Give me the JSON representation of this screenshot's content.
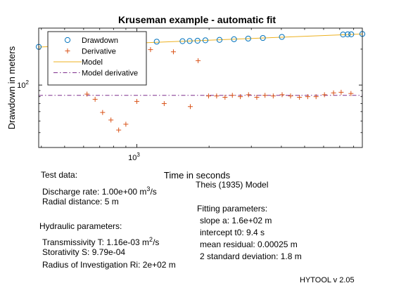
{
  "chart_data": {
    "type": "scatter",
    "title": "Kruseman example - automatic fit",
    "xlabel": "Time in seconds",
    "ylabel": "Drawdown in meters",
    "x_scale": "log",
    "y_scale": "log",
    "xlim": [
      390,
      8700
    ],
    "ylim": [
      30,
      300
    ],
    "x_ticks": [
      {
        "value": 1000,
        "label": "10^3"
      }
    ],
    "y_ticks": [
      {
        "value": 100,
        "label": "10^2"
      }
    ],
    "grid": false,
    "legend_position": "top-left",
    "series": [
      {
        "name": "Drawdown",
        "marker": "circle",
        "color": "#0072BD",
        "x": [
          390,
          1210,
          1550,
          1660,
          1790,
          1930,
          2210,
          2540,
          2910,
          3350,
          4020,
          7230,
          7560,
          7820,
          8700
        ],
        "y": [
          209,
          231,
          233,
          234,
          235,
          237,
          239,
          242,
          245,
          248,
          253,
          265,
          266,
          266,
          268
        ]
      },
      {
        "name": "Derivative",
        "marker": "plus",
        "color": "#D95319",
        "x": [
          570,
          620,
          670,
          720,
          780,
          840,
          900,
          1000,
          1140,
          1300,
          1420,
          1670,
          1800,
          1990,
          2150,
          2330,
          2500,
          2700,
          2920,
          3160,
          3420,
          3700,
          4030,
          4370,
          4760,
          5150,
          5580,
          6050,
          6600,
          7100,
          7800
        ],
        "y": [
          155,
          84,
          76,
          59,
          51,
          42,
          47,
          73,
          198,
          70,
          190,
          66,
          160,
          81,
          81,
          79,
          82,
          80,
          83,
          79,
          82,
          81,
          83,
          81,
          79,
          80,
          80,
          83,
          86,
          87,
          85
        ]
      },
      {
        "name": "Model",
        "type": "line",
        "color": "#EDB120",
        "x": [
          390,
          8700
        ],
        "y": [
          208,
          268
        ]
      },
      {
        "name": "Model derivative",
        "type": "line",
        "dash": "dashdot",
        "color": "#7E2F8E",
        "x": [
          390,
          8700
        ],
        "y": [
          82,
          82
        ]
      }
    ]
  },
  "text_panel": {
    "test_data_heading": "Test data:",
    "discharge_prefix": "Discharge rate: 1.00e+00 m",
    "discharge_exp": "3",
    "discharge_suffix": "/s",
    "radial": "Radial distance: 5 m",
    "hydraulic_heading": "Hydraulic parameters:",
    "transmissivity_prefix": "Transmissivity T: 1.16e-03 m",
    "transmissivity_exp": "2",
    "transmissivity_suffix": "/s",
    "storativity": "Storativity S: 9.79e-04",
    "radius": "Radius of Investigation Ri: 2e+02 m",
    "model_name": "Theis (1935) Model",
    "fitting_heading": "Fitting parameters:",
    "slope": "slope a: 1.6e+02 m",
    "intercept": "intercept t0: 9.4 s",
    "mean_residual": "mean residual: 0.00025 m",
    "std_dev": "2 standard deviation: 1.8 m",
    "version": "HYTOOL v 2.05"
  }
}
